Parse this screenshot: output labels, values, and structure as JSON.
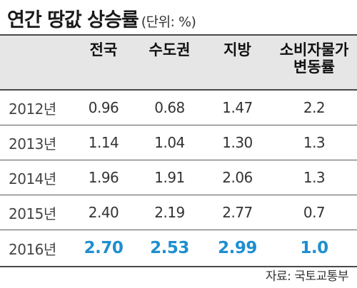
{
  "title": "연간 땅값 상승률",
  "unit": "(단위: %)",
  "source": "자료: 국토교통부",
  "colors": {
    "highlight": "#1e8fd0",
    "header_bg": "#e6e6e6",
    "rule": "#4a4a4a"
  },
  "chart_data": {
    "type": "table",
    "title": "연간 땅값 상승률",
    "unit": "(단위: %)",
    "columns": [
      "",
      "전국",
      "수도권",
      "지방",
      "소비자물가\n변동률"
    ],
    "rows": [
      {
        "year": "2012년",
        "values": [
          "0.96",
          "0.68",
          "1.47",
          "2.2"
        ]
      },
      {
        "year": "2013년",
        "values": [
          "1.14",
          "1.04",
          "1.30",
          "1.3"
        ]
      },
      {
        "year": "2014년",
        "values": [
          "1.96",
          "1.91",
          "2.06",
          "1.3"
        ]
      },
      {
        "year": "2015년",
        "values": [
          "2.40",
          "2.19",
          "2.77",
          "0.7"
        ]
      },
      {
        "year": "2016년",
        "values": [
          "2.70",
          "2.53",
          "2.99",
          "1.0"
        ]
      }
    ],
    "highlight_row": "2016년",
    "source": "자료: 국토교통부"
  }
}
